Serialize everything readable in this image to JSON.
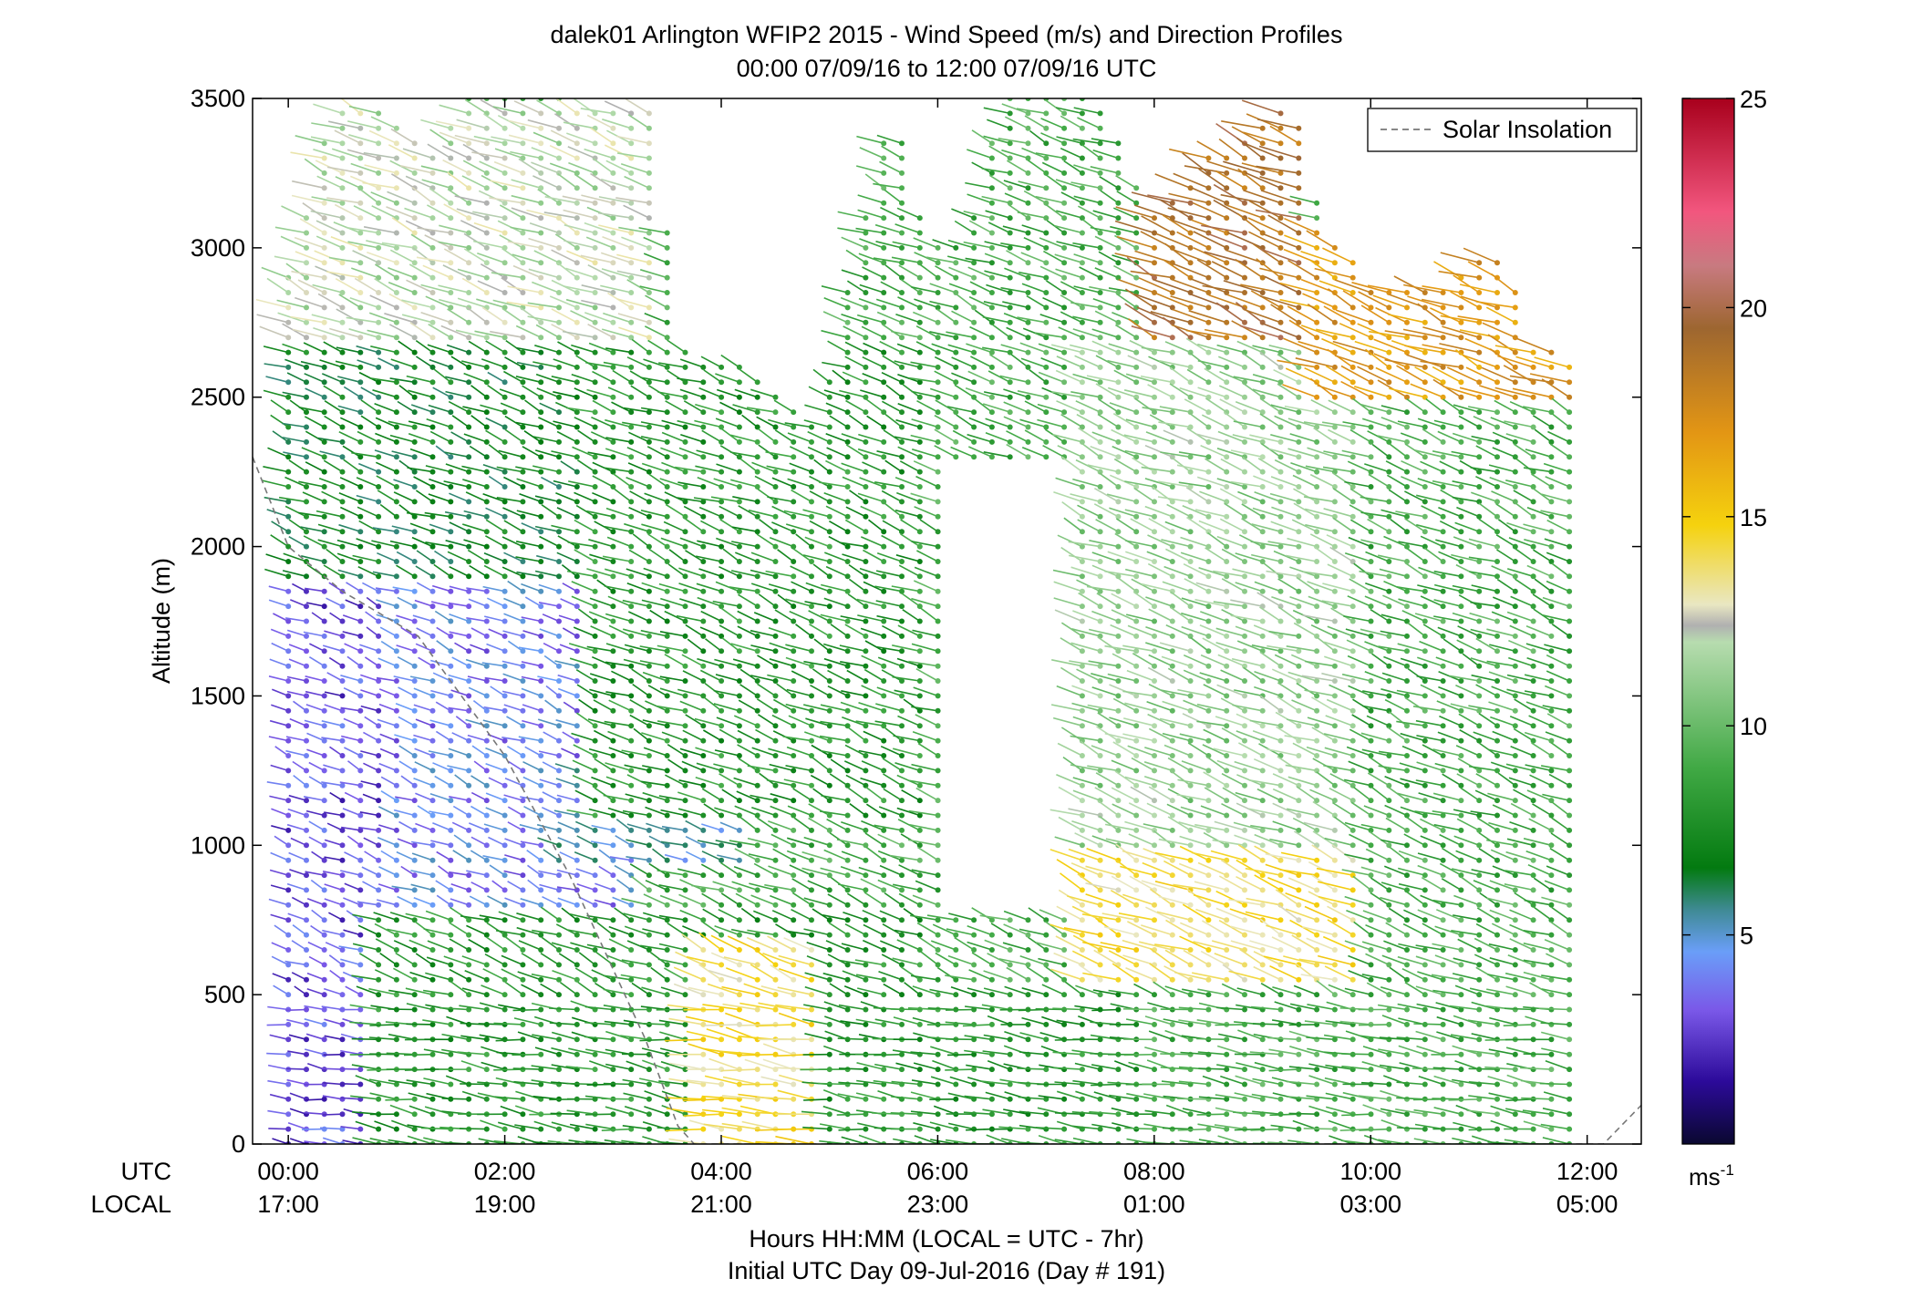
{
  "chart_data": {
    "type": "scatter",
    "plot_kind": "wind-barb profile (time-altitude)",
    "title": "dalek01 Arlington WFIP2 2015 - Wind Speed (m/s) and Direction Profiles",
    "subtitle": "00:00 07/09/16 to 12:00 07/09/16  UTC",
    "ylabel": "Altitude (m)",
    "xlabel": "Hours HH:MM  (LOCAL = UTC - 7hr)",
    "xlabel2": "Initial UTC Day 09-Jul-2016 (Day # 191)",
    "x_row_labels": {
      "utc": "UTC",
      "local": "LOCAL"
    },
    "ylim": [
      0,
      3500
    ],
    "xlim": [
      -0.33,
      12.5
    ],
    "y_ticks": [
      0,
      500,
      1000,
      1500,
      2000,
      2500,
      3000,
      3500
    ],
    "x_ticks_hours": [
      0,
      2,
      4,
      6,
      8,
      10,
      12
    ],
    "x_ticks_utc": [
      "00:00",
      "02:00",
      "04:00",
      "06:00",
      "08:00",
      "10:00",
      "12:00"
    ],
    "x_ticks_local": [
      "17:00",
      "19:00",
      "21:00",
      "23:00",
      "01:00",
      "03:00",
      "05:00"
    ],
    "legend": {
      "entries": [
        "Solar Insolation"
      ],
      "position": "top-right",
      "line_color": "#777777"
    },
    "colorbar": {
      "min": 0,
      "max": 25,
      "ticks": [
        5,
        10,
        15,
        20,
        25
      ],
      "unit_label_base": "ms",
      "unit_label_exp": "-1",
      "stops": [
        {
          "v": 0,
          "c": "#0a0830"
        },
        {
          "v": 1.5,
          "c": "#2c0a9a"
        },
        {
          "v": 3.2,
          "c": "#7a58e8"
        },
        {
          "v": 4.6,
          "c": "#6a9ef8"
        },
        {
          "v": 5.6,
          "c": "#3f8a94"
        },
        {
          "v": 6.6,
          "c": "#037a10"
        },
        {
          "v": 9,
          "c": "#41a945"
        },
        {
          "v": 12,
          "c": "#b7dcaf"
        },
        {
          "v": 12.4,
          "c": "#b0b0b0"
        },
        {
          "v": 12.9,
          "c": "#e9e7c2"
        },
        {
          "v": 14.8,
          "c": "#f5d20e"
        },
        {
          "v": 17,
          "c": "#e39614"
        },
        {
          "v": 19.5,
          "c": "#9d6630"
        },
        {
          "v": 21,
          "c": "#c87a80"
        },
        {
          "v": 22.3,
          "c": "#f2567e"
        },
        {
          "v": 25,
          "c": "#a8001c"
        }
      ]
    },
    "solar_insolation": [
      [
        -0.33,
        2300
      ],
      [
        0,
        2000
      ],
      [
        0.5,
        1850
      ],
      [
        1.2,
        1700
      ],
      [
        2.0,
        1300
      ],
      [
        2.6,
        900
      ],
      [
        3.3,
        350
      ],
      [
        3.6,
        60
      ],
      [
        3.75,
        0
      ],
      [
        12.15,
        0
      ],
      [
        12.5,
        130
      ]
    ],
    "wind_field": {
      "time_start_hr": 0,
      "time_end_hr": 11.9,
      "time_step_hr": 0.1667,
      "altitude_step_m": 50,
      "top_boundary_m": [
        [
          0,
          2900
        ],
        [
          0.4,
          3450
        ],
        [
          0.8,
          3500
        ],
        [
          1.3,
          3300
        ],
        [
          1.6,
          3500
        ],
        [
          2.6,
          3500
        ],
        [
          3.4,
          3450
        ],
        [
          3.6,
          2700
        ],
        [
          3.9,
          2600
        ],
        [
          4.3,
          2600
        ],
        [
          4.6,
          2500
        ],
        [
          4.9,
          2400
        ],
        [
          5.2,
          2950
        ],
        [
          5.6,
          3500
        ],
        [
          5.9,
          3000
        ],
        [
          6.3,
          3050
        ],
        [
          6.6,
          3500
        ],
        [
          7.2,
          3500
        ],
        [
          7.5,
          3500
        ],
        [
          8.0,
          3100
        ],
        [
          8.5,
          3300
        ],
        [
          9.3,
          3500
        ],
        [
          9.6,
          3050
        ],
        [
          10.0,
          2900
        ],
        [
          10.5,
          2850
        ],
        [
          11.2,
          3000
        ],
        [
          11.5,
          2700
        ],
        [
          11.9,
          2600
        ]
      ],
      "gap_region": {
        "t0": 6.1,
        "t1": 7.2,
        "top_m": 2300,
        "bottom_m": 750
      },
      "speed_zones": [
        {
          "t0": 0,
          "t1": 1.0,
          "z0": 0,
          "z1": 1900,
          "speed": 3
        },
        {
          "t0": 1.0,
          "t1": 3.2,
          "z0": 800,
          "z1": 1900,
          "speed": 4
        },
        {
          "t0": 2.5,
          "t1": 4.2,
          "z0": 950,
          "z1": 1300,
          "speed": 5
        },
        {
          "t0": 0,
          "t1": 2.8,
          "z0": 1900,
          "z1": 2700,
          "speed": 7
        },
        {
          "t0": 2.8,
          "t1": 6.0,
          "z0": 1100,
          "z1": 2700,
          "speed": 8
        },
        {
          "t0": 0.8,
          "t1": 6.0,
          "z0": 0,
          "z1": 800,
          "speed": 8
        },
        {
          "t0": 3.8,
          "t1": 5.0,
          "z0": 0,
          "z1": 700,
          "speed": 14
        },
        {
          "t0": 6.0,
          "t1": 8.0,
          "z0": 0,
          "z1": 550,
          "speed": 8
        },
        {
          "t0": 7.2,
          "t1": 10.2,
          "z0": 550,
          "z1": 1000,
          "speed": 14
        },
        {
          "t0": 7.2,
          "t1": 10.0,
          "z0": 1000,
          "z1": 2700,
          "speed": 11
        },
        {
          "t0": 8.0,
          "t1": 9.5,
          "z0": 2700,
          "z1": 3500,
          "speed": 19
        },
        {
          "t0": 9.5,
          "t1": 11.9,
          "z0": 2500,
          "z1": 3100,
          "speed": 17
        },
        {
          "t0": 10.0,
          "t1": 11.9,
          "z0": 0,
          "z1": 1300,
          "speed": 9
        },
        {
          "t0": 0,
          "t1": 3.5,
          "z0": 2700,
          "z1": 3500,
          "speed": 12
        }
      ]
    }
  }
}
